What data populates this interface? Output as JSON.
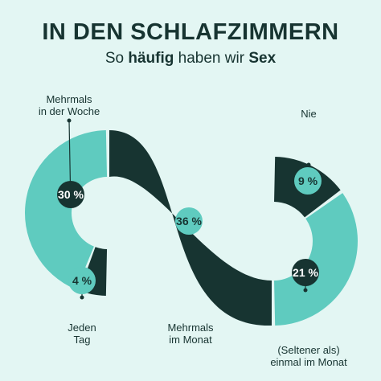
{
  "title": "IN DEN SCHLAFZIMMERN",
  "subtitle_pre": "So ",
  "subtitle_bold1": "häufig",
  "subtitle_mid": " haben wir ",
  "subtitle_bold2": "Sex",
  "colors": {
    "background": "#e3f6f3",
    "light_teal": "#5fcbbf",
    "dark_green": "#173431",
    "connector_line": "#173431"
  },
  "chart_data": {
    "type": "pie",
    "unit": "%",
    "slices": [
      {
        "label_lines": [
          "Mehrmals",
          "in der Woche"
        ],
        "value": 30,
        "value_label": "30 %",
        "color": "light"
      },
      {
        "label_lines": [
          "Jeden",
          "Tag"
        ],
        "value": 4,
        "value_label": "4 %",
        "color": "dark"
      },
      {
        "label_lines": [
          "Mehrmals",
          "im Monat"
        ],
        "value": 36,
        "value_label": "36 %",
        "color": "dark"
      },
      {
        "label_lines": [
          "(Seltener als)",
          "einmal im Monat"
        ],
        "value": 21,
        "value_label": "21 %",
        "color": "light"
      },
      {
        "label_lines": [
          "Nie"
        ],
        "value": 9,
        "value_label": "9 %",
        "color": "dark"
      }
    ]
  }
}
